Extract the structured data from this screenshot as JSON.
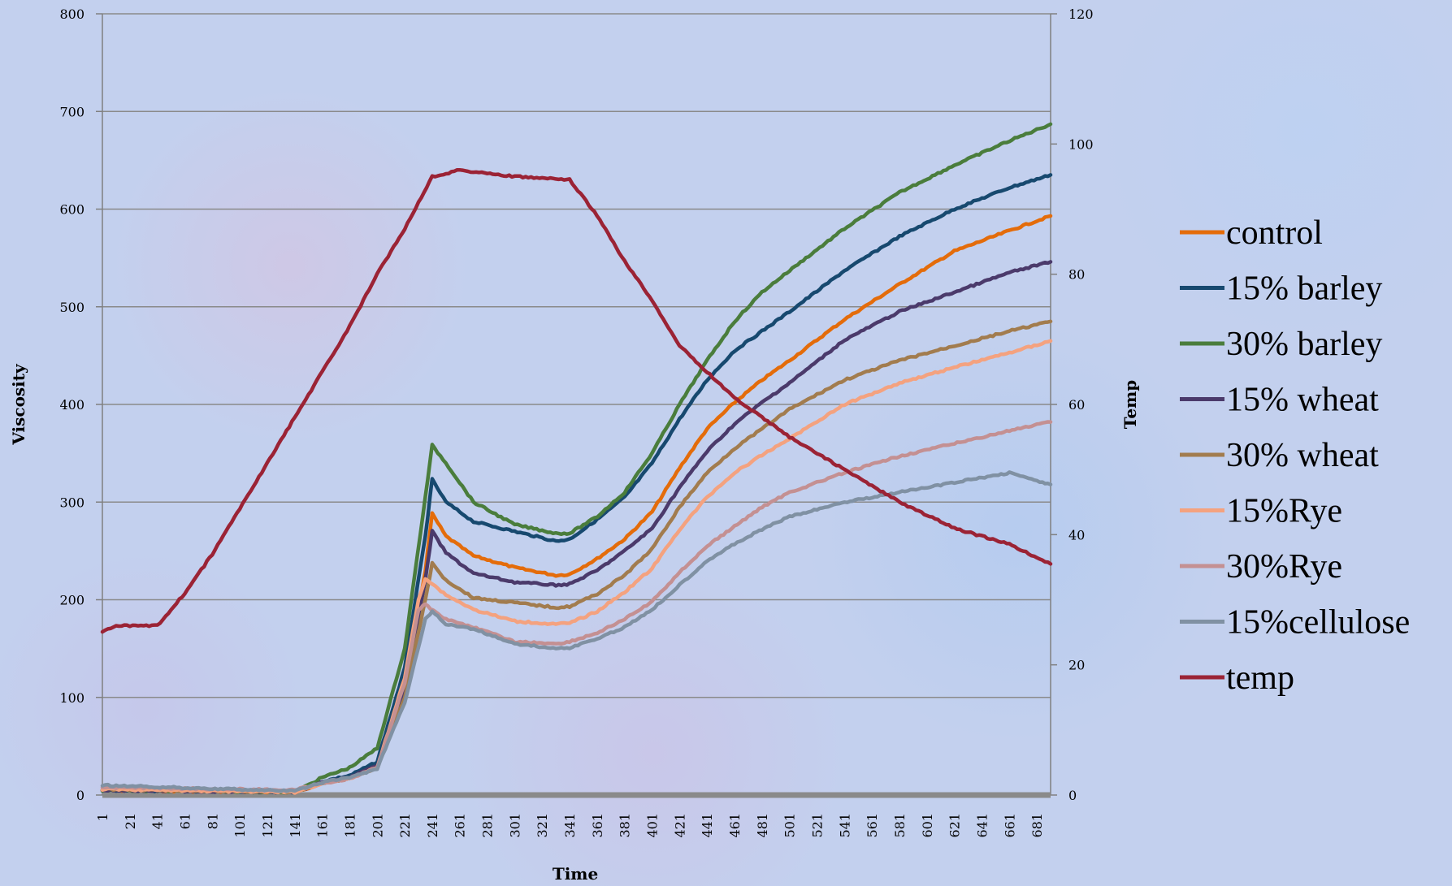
{
  "chart_data": {
    "type": "line",
    "title": "",
    "xlabel": "Time",
    "ylabel": "Viscosity",
    "y2label": "Temp",
    "ylim": [
      0,
      800
    ],
    "y2lim": [
      0,
      120
    ],
    "y_ticks": [
      "0",
      "100",
      "200",
      "300",
      "400",
      "500",
      "600",
      "700",
      "800"
    ],
    "y2_ticks": [
      "0",
      "20",
      "40",
      "60",
      "80",
      "100",
      "120"
    ],
    "x_ticks": [
      "1",
      "21",
      "41",
      "61",
      "81",
      "101",
      "121",
      "141",
      "161",
      "181",
      "201",
      "221",
      "241",
      "261",
      "281",
      "301",
      "321",
      "341",
      "361",
      "381",
      "401",
      "421",
      "441",
      "461",
      "481",
      "501",
      "521",
      "541",
      "561",
      "581",
      "601",
      "621",
      "641",
      "661",
      "681"
    ],
    "xlim": [
      1,
      691
    ],
    "grid": true,
    "legend_position": "right",
    "series": [
      {
        "name": "control",
        "color": "#e46c0a",
        "axis": "left",
        "x": [
          1,
          141,
          161,
          181,
          201,
          221,
          236,
          241,
          251,
          271,
          301,
          331,
          341,
          361,
          381,
          401,
          421,
          441,
          461,
          481,
          501,
          541,
          581,
          621,
          661,
          691
        ],
        "y": [
          5,
          3,
          12,
          18,
          30,
          110,
          230,
          288,
          265,
          245,
          233,
          225,
          226,
          242,
          262,
          290,
          335,
          375,
          402,
          425,
          445,
          487,
          523,
          557,
          578,
          593
        ]
      },
      {
        "name": "15% barley",
        "color": "#17496f",
        "axis": "left",
        "x": [
          1,
          141,
          161,
          181,
          201,
          221,
          236,
          241,
          251,
          271,
          301,
          331,
          341,
          361,
          381,
          401,
          421,
          441,
          461,
          481,
          501,
          541,
          581,
          621,
          661,
          691
        ],
        "y": [
          5,
          3,
          14,
          20,
          34,
          130,
          265,
          323,
          300,
          280,
          270,
          260,
          262,
          282,
          305,
          340,
          385,
          425,
          455,
          475,
          495,
          537,
          572,
          600,
          622,
          635
        ]
      },
      {
        "name": "30% barley",
        "color": "#4a7d3c",
        "axis": "left",
        "x": [
          1,
          141,
          161,
          181,
          201,
          221,
          236,
          241,
          251,
          271,
          301,
          331,
          341,
          361,
          381,
          401,
          421,
          441,
          461,
          481,
          501,
          541,
          581,
          621,
          661,
          691
        ],
        "y": [
          5,
          3,
          18,
          28,
          48,
          150,
          305,
          358,
          340,
          300,
          277,
          268,
          268,
          285,
          310,
          350,
          400,
          445,
          485,
          515,
          537,
          580,
          617,
          645,
          670,
          687
        ]
      },
      {
        "name": "15% wheat",
        "color": "#4b3a6b",
        "axis": "left",
        "x": [
          1,
          141,
          161,
          181,
          201,
          221,
          236,
          241,
          251,
          271,
          301,
          331,
          341,
          361,
          381,
          401,
          421,
          441,
          461,
          481,
          501,
          541,
          581,
          621,
          661,
          691
        ],
        "y": [
          5,
          3,
          13,
          18,
          30,
          110,
          220,
          270,
          248,
          227,
          218,
          215,
          216,
          230,
          250,
          273,
          315,
          352,
          380,
          402,
          422,
          466,
          495,
          515,
          535,
          546
        ]
      },
      {
        "name": "30% wheat",
        "color": "#a27c4e",
        "axis": "left",
        "x": [
          1,
          141,
          161,
          181,
          201,
          221,
          236,
          241,
          251,
          271,
          301,
          331,
          341,
          361,
          381,
          401,
          421,
          441,
          461,
          481,
          501,
          541,
          581,
          621,
          661,
          691
        ],
        "y": [
          6,
          3,
          12,
          17,
          28,
          100,
          200,
          237,
          220,
          202,
          197,
          192,
          193,
          206,
          225,
          252,
          295,
          330,
          355,
          375,
          395,
          425,
          445,
          460,
          475,
          485
        ]
      },
      {
        "name": "15%Rye",
        "color": "#f4a27f",
        "axis": "left",
        "x": [
          1,
          141,
          161,
          181,
          201,
          221,
          231,
          236,
          251,
          271,
          301,
          331,
          341,
          361,
          381,
          401,
          421,
          441,
          461,
          481,
          501,
          541,
          581,
          621,
          661,
          691
        ],
        "y": [
          6,
          3,
          12,
          17,
          28,
          120,
          200,
          222,
          205,
          190,
          178,
          175,
          176,
          188,
          208,
          232,
          272,
          305,
          330,
          348,
          365,
          400,
          422,
          438,
          453,
          465
        ]
      },
      {
        "name": "30%Rye",
        "color": "#c49092",
        "axis": "left",
        "x": [
          1,
          141,
          161,
          181,
          201,
          221,
          231,
          236,
          251,
          271,
          301,
          331,
          341,
          361,
          381,
          401,
          421,
          441,
          461,
          481,
          501,
          541,
          581,
          621,
          661,
          691
        ],
        "y": [
          8,
          5,
          12,
          17,
          28,
          115,
          190,
          195,
          180,
          172,
          157,
          155,
          157,
          166,
          180,
          198,
          228,
          255,
          275,
          295,
          310,
          330,
          347,
          360,
          373,
          382
        ]
      },
      {
        "name": "15%cellulose",
        "color": "#8091a3",
        "axis": "left",
        "x": [
          1,
          141,
          161,
          181,
          201,
          221,
          236,
          241,
          251,
          271,
          301,
          331,
          341,
          361,
          381,
          401,
          421,
          441,
          461,
          481,
          501,
          541,
          581,
          621,
          661,
          691
        ],
        "y": [
          10,
          4,
          13,
          18,
          27,
          95,
          180,
          188,
          175,
          170,
          155,
          150,
          151,
          160,
          172,
          190,
          215,
          240,
          257,
          272,
          285,
          300,
          310,
          320,
          330,
          318
        ]
      },
      {
        "name": "temp",
        "color": "#9b2335",
        "axis": "right",
        "x": [
          1,
          11,
          41,
          61,
          81,
          101,
          121,
          141,
          161,
          181,
          201,
          221,
          231,
          241,
          261,
          281,
          301,
          341,
          361,
          381,
          401,
          421,
          461,
          501,
          541,
          581,
          621,
          661,
          691
        ],
        "y": [
          25,
          26,
          26,
          31,
          37,
          44,
          51,
          58,
          65,
          72,
          80,
          87,
          91,
          95,
          96,
          95.5,
          95,
          94.5,
          89,
          82,
          76,
          69,
          61,
          55,
          50,
          45,
          41,
          38.5,
          35.5
        ]
      }
    ]
  }
}
